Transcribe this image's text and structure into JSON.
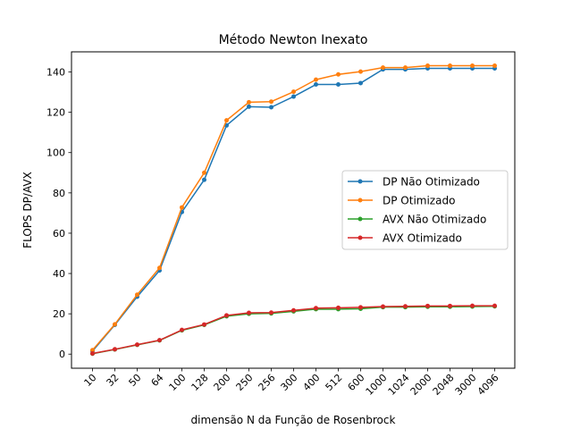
{
  "chart_data": {
    "type": "line",
    "title": "Método Newton Inexato",
    "xlabel": "dimensão N da Função de Rosenbrock",
    "ylabel": "FLOPS DP/AVX",
    "categories": [
      "10",
      "32",
      "50",
      "64",
      "100",
      "128",
      "200",
      "250",
      "256",
      "300",
      "400",
      "512",
      "600",
      "1000",
      "1024",
      "2000",
      "2048",
      "3000",
      "4096"
    ],
    "ylim": [
      -7,
      150
    ],
    "yticks": [
      0,
      20,
      40,
      60,
      80,
      100,
      120,
      140
    ],
    "grid": false,
    "legend_position": "center-right",
    "series": [
      {
        "name": "DP Não Otimizado",
        "color": "#1f77b4",
        "values": [
          1.5,
          14.5,
          28.5,
          41.5,
          70.5,
          86.5,
          113.5,
          122.8,
          122.5,
          127.8,
          133.8,
          133.8,
          134.5,
          141.3,
          141.3,
          141.8,
          141.8,
          141.8,
          141.8
        ]
      },
      {
        "name": "DP Otimizado",
        "color": "#ff7f0e",
        "values": [
          2.0,
          14.8,
          29.5,
          42.8,
          72.8,
          90.0,
          116.0,
          125.0,
          125.3,
          130.2,
          136.2,
          138.8,
          140.2,
          142.2,
          142.2,
          143.1,
          143.1,
          143.1,
          143.1
        ]
      },
      {
        "name": "AVX Não Otimizado",
        "color": "#2ca02c",
        "values": [
          0.2,
          2.3,
          4.6,
          6.8,
          11.8,
          14.5,
          18.8,
          20.0,
          20.2,
          21.2,
          22.3,
          22.3,
          22.5,
          23.3,
          23.3,
          23.5,
          23.5,
          23.6,
          23.7
        ]
      },
      {
        "name": "AVX Otimizado",
        "color": "#d62728",
        "values": [
          0.3,
          2.4,
          4.7,
          6.9,
          12.0,
          14.7,
          19.2,
          20.5,
          20.6,
          21.7,
          22.8,
          23.0,
          23.2,
          23.6,
          23.7,
          23.9,
          23.9,
          24.0,
          24.0
        ]
      }
    ]
  }
}
